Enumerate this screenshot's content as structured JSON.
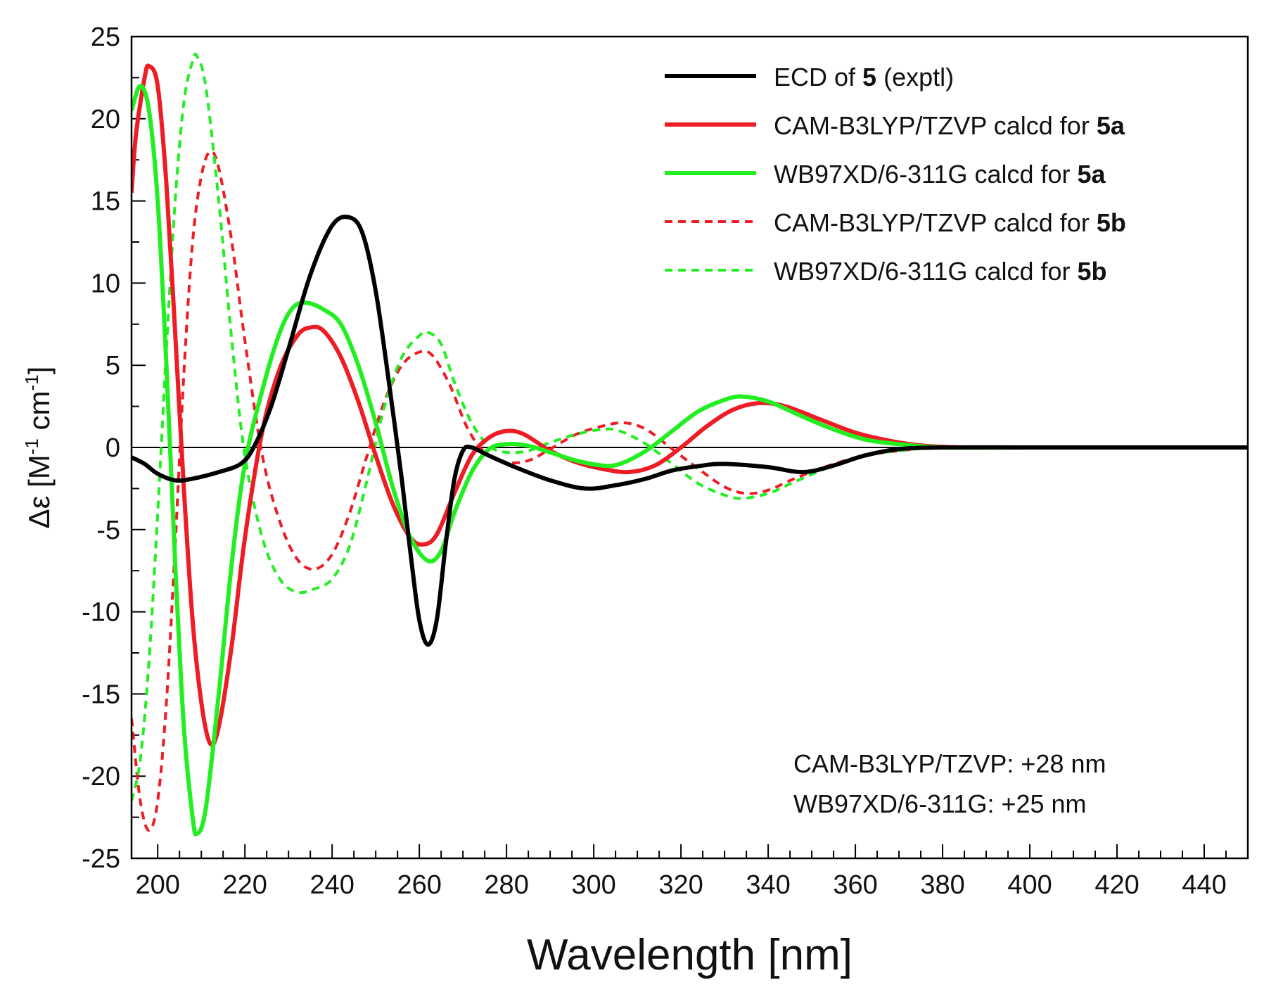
{
  "chart_data": {
    "type": "line",
    "title": "",
    "xlabel": "Wavelength [nm]",
    "ylabel_prefix": "Δε [M",
    "ylabel_sup1": "-1",
    "ylabel_mid": " cm",
    "ylabel_sup2": "-1",
    "ylabel_suffix": "]",
    "xlim": [
      194,
      450
    ],
    "ylim": [
      -25,
      25
    ],
    "xticks": [
      200,
      220,
      240,
      260,
      280,
      300,
      320,
      340,
      360,
      380,
      400,
      420,
      440
    ],
    "yticks": [
      25,
      20,
      15,
      10,
      5,
      0,
      -5,
      -10,
      -15,
      -20,
      -25
    ],
    "grid": false,
    "legend_position": "top-right",
    "series": [
      {
        "name": "ECD of 5 (exptl)",
        "legend_parts": [
          "ECD of ",
          "5",
          " (exptl)"
        ],
        "color": "#000000",
        "dash": "solid",
        "points": [
          [
            194,
            -0.6
          ],
          [
            197,
            -1.0
          ],
          [
            200,
            -1.6
          ],
          [
            204,
            -2.0
          ],
          [
            208,
            -1.9
          ],
          [
            214,
            -1.5
          ],
          [
            219,
            -1.0
          ],
          [
            222,
            0.0
          ],
          [
            226,
            2.5
          ],
          [
            230,
            6.0
          ],
          [
            235,
            10.5
          ],
          [
            240,
            13.5
          ],
          [
            244,
            14.0
          ],
          [
            247,
            13.0
          ],
          [
            250,
            9.5
          ],
          [
            253,
            4.0
          ],
          [
            256,
            -2.0
          ],
          [
            258,
            -6.5
          ],
          [
            260,
            -10.5
          ],
          [
            262,
            -12.0
          ],
          [
            264,
            -10.5
          ],
          [
            266,
            -6.0
          ],
          [
            268,
            -2.0
          ],
          [
            270,
            -0.2
          ],
          [
            272,
            0.0
          ],
          [
            276,
            -0.5
          ],
          [
            282,
            -1.2
          ],
          [
            290,
            -2.0
          ],
          [
            298,
            -2.5
          ],
          [
            305,
            -2.3
          ],
          [
            312,
            -1.9
          ],
          [
            318,
            -1.4
          ],
          [
            325,
            -1.1
          ],
          [
            330,
            -1.0
          ],
          [
            340,
            -1.2
          ],
          [
            348,
            -1.5
          ],
          [
            355,
            -1.1
          ],
          [
            362,
            -0.5
          ],
          [
            370,
            -0.1
          ],
          [
            380,
            0.0
          ],
          [
            400,
            0.0
          ],
          [
            420,
            0.0
          ],
          [
            450,
            0.0
          ]
        ]
      },
      {
        "name": "CAM-B3LYP/TZVP calcd for 5a",
        "legend_parts": [
          "CAM-B3LYP/TZVP calcd for ",
          "5a",
          ""
        ],
        "color": "#ee1c24",
        "dash": "solid",
        "points": [
          [
            194,
            15.5
          ],
          [
            195,
            19.0
          ],
          [
            197,
            22.5
          ],
          [
            198,
            23.2
          ],
          [
            200,
            22.0
          ],
          [
            202,
            16.0
          ],
          [
            204,
            7.0
          ],
          [
            206,
            -2.5
          ],
          [
            208,
            -10.5
          ],
          [
            210,
            -15.5
          ],
          [
            212,
            -18.0
          ],
          [
            214,
            -17.0
          ],
          [
            217,
            -12.0
          ],
          [
            220,
            -5.5
          ],
          [
            224,
            1.0
          ],
          [
            228,
            4.8
          ],
          [
            232,
            6.8
          ],
          [
            235,
            7.3
          ],
          [
            238,
            7.1
          ],
          [
            242,
            5.5
          ],
          [
            246,
            2.8
          ],
          [
            250,
            -0.5
          ],
          [
            254,
            -3.5
          ],
          [
            258,
            -5.5
          ],
          [
            261,
            -5.9
          ],
          [
            264,
            -5.3
          ],
          [
            268,
            -2.8
          ],
          [
            272,
            -0.5
          ],
          [
            276,
            0.6
          ],
          [
            280,
            1.0
          ],
          [
            284,
            0.8
          ],
          [
            290,
            -0.2
          ],
          [
            296,
            -0.9
          ],
          [
            302,
            -1.3
          ],
          [
            308,
            -1.5
          ],
          [
            314,
            -1.1
          ],
          [
            320,
            0.0
          ],
          [
            326,
            1.3
          ],
          [
            332,
            2.3
          ],
          [
            338,
            2.7
          ],
          [
            344,
            2.5
          ],
          [
            352,
            1.7
          ],
          [
            360,
            0.9
          ],
          [
            368,
            0.4
          ],
          [
            376,
            0.1
          ],
          [
            385,
            0.0
          ],
          [
            400,
            0.0
          ],
          [
            450,
            0.0
          ]
        ]
      },
      {
        "name": "WB97XD/6-311G calcd for 5a",
        "legend_parts": [
          "WB97XD/6-311G  calcd for ",
          "5a",
          ""
        ],
        "color": "#22ee22",
        "dash": "solid",
        "points": [
          [
            194,
            20.5
          ],
          [
            196,
            22.0
          ],
          [
            198,
            20.5
          ],
          [
            200,
            15.0
          ],
          [
            202,
            5.0
          ],
          [
            204,
            -7.0
          ],
          [
            206,
            -17.0
          ],
          [
            208,
            -22.5
          ],
          [
            209,
            -23.5
          ],
          [
            211,
            -22.0
          ],
          [
            214,
            -15.0
          ],
          [
            217,
            -7.0
          ],
          [
            220,
            -1.0
          ],
          [
            224,
            3.5
          ],
          [
            228,
            7.0
          ],
          [
            231,
            8.5
          ],
          [
            234,
            8.8
          ],
          [
            238,
            8.4
          ],
          [
            242,
            7.5
          ],
          [
            246,
            5.0
          ],
          [
            250,
            1.5
          ],
          [
            254,
            -2.5
          ],
          [
            258,
            -5.5
          ],
          [
            262,
            -6.9
          ],
          [
            265,
            -6.3
          ],
          [
            268,
            -4.0
          ],
          [
            272,
            -1.5
          ],
          [
            276,
            -0.1
          ],
          [
            280,
            0.2
          ],
          [
            285,
            0.1
          ],
          [
            290,
            -0.3
          ],
          [
            296,
            -0.8
          ],
          [
            302,
            -1.1
          ],
          [
            306,
            -1.0
          ],
          [
            312,
            -0.2
          ],
          [
            318,
            1.0
          ],
          [
            324,
            2.2
          ],
          [
            330,
            2.9
          ],
          [
            334,
            3.1
          ],
          [
            340,
            2.8
          ],
          [
            346,
            2.1
          ],
          [
            354,
            1.2
          ],
          [
            362,
            0.5
          ],
          [
            370,
            0.2
          ],
          [
            380,
            0.0
          ],
          [
            400,
            0.0
          ],
          [
            450,
            0.0
          ]
        ]
      },
      {
        "name": "CAM-B3LYP/TZVP calcd for 5b",
        "legend_parts": [
          "CAM-B3LYP/TZVP calcd for ",
          "5b",
          ""
        ],
        "color": "#ee1c24",
        "dash": "dashed",
        "points": [
          [
            194,
            -16.5
          ],
          [
            196,
            -21.5
          ],
          [
            198,
            -23.3
          ],
          [
            200,
            -21.5
          ],
          [
            202,
            -15.5
          ],
          [
            204,
            -6.0
          ],
          [
            206,
            4.5
          ],
          [
            208,
            12.5
          ],
          [
            210,
            16.5
          ],
          [
            212,
            18.0
          ],
          [
            214,
            17.0
          ],
          [
            217,
            12.5
          ],
          [
            220,
            6.5
          ],
          [
            224,
            -0.5
          ],
          [
            228,
            -4.5
          ],
          [
            232,
            -6.8
          ],
          [
            236,
            -7.4
          ],
          [
            240,
            -6.5
          ],
          [
            244,
            -4.0
          ],
          [
            248,
            -0.5
          ],
          [
            252,
            2.8
          ],
          [
            256,
            5.0
          ],
          [
            260,
            5.8
          ],
          [
            263,
            5.6
          ],
          [
            267,
            3.8
          ],
          [
            271,
            1.2
          ],
          [
            275,
            -0.3
          ],
          [
            280,
            -0.9
          ],
          [
            285,
            -0.8
          ],
          [
            290,
            -0.1
          ],
          [
            296,
            0.8
          ],
          [
            302,
            1.3
          ],
          [
            307,
            1.5
          ],
          [
            312,
            1.1
          ],
          [
            318,
            -0.1
          ],
          [
            324,
            -1.3
          ],
          [
            330,
            -2.4
          ],
          [
            335,
            -2.8
          ],
          [
            340,
            -2.6
          ],
          [
            346,
            -1.9
          ],
          [
            354,
            -1.1
          ],
          [
            362,
            -0.5
          ],
          [
            370,
            -0.2
          ],
          [
            380,
            0.0
          ],
          [
            400,
            0.0
          ],
          [
            450,
            0.0
          ]
        ]
      },
      {
        "name": "WB97XD/6-311G calcd for 5b",
        "legend_parts": [
          "WB97XD/6-311G  calcd for ",
          "5b",
          ""
        ],
        "color": "#22ee22",
        "dash": "dashed",
        "points": [
          [
            194,
            -21.5
          ],
          [
            196,
            -19.0
          ],
          [
            198,
            -13.0
          ],
          [
            200,
            -4.0
          ],
          [
            202,
            6.0
          ],
          [
            204,
            15.0
          ],
          [
            206,
            21.0
          ],
          [
            208,
            23.5
          ],
          [
            209,
            23.8
          ],
          [
            211,
            22.0
          ],
          [
            214,
            15.0
          ],
          [
            217,
            6.5
          ],
          [
            220,
            -0.5
          ],
          [
            224,
            -5.5
          ],
          [
            228,
            -8.0
          ],
          [
            232,
            -8.8
          ],
          [
            236,
            -8.6
          ],
          [
            240,
            -8.0
          ],
          [
            244,
            -6.0
          ],
          [
            248,
            -2.0
          ],
          [
            252,
            2.5
          ],
          [
            256,
            5.5
          ],
          [
            260,
            6.8
          ],
          [
            262,
            7.0
          ],
          [
            265,
            6.3
          ],
          [
            268,
            4.0
          ],
          [
            272,
            1.5
          ],
          [
            276,
            0.1
          ],
          [
            280,
            -0.3
          ],
          [
            285,
            -0.2
          ],
          [
            290,
            0.3
          ],
          [
            296,
            0.8
          ],
          [
            302,
            1.1
          ],
          [
            306,
            1.0
          ],
          [
            312,
            0.2
          ],
          [
            318,
            -1.0
          ],
          [
            324,
            -2.2
          ],
          [
            330,
            -2.9
          ],
          [
            334,
            -3.1
          ],
          [
            340,
            -2.8
          ],
          [
            346,
            -2.1
          ],
          [
            354,
            -1.2
          ],
          [
            362,
            -0.5
          ],
          [
            370,
            -0.2
          ],
          [
            380,
            0.0
          ],
          [
            400,
            0.0
          ],
          [
            450,
            0.0
          ]
        ]
      }
    ],
    "annotations": [
      "CAM-B3LYP/TZVP: +28 nm",
      "WB97XD/6-311G: +25 nm"
    ]
  }
}
